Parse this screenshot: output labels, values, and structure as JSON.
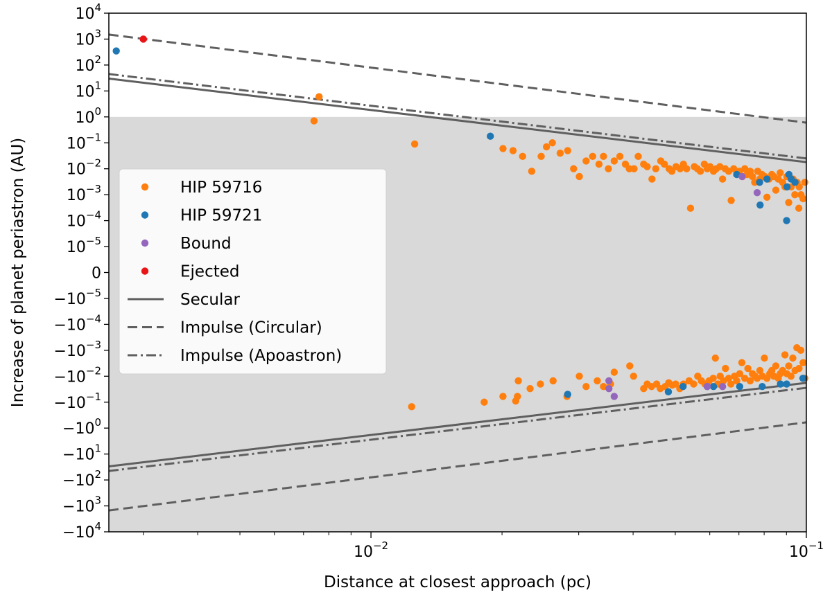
{
  "chart_data": {
    "type": "scatter",
    "title": "",
    "xlabel": "Distance at closest approach (pc)",
    "ylabel": "Increase of planet periastron (AU)",
    "x_scale": "log",
    "y_scale": "symlog",
    "xlim": [
      0.0025,
      0.1
    ],
    "y_tick_values": [
      10000,
      1000,
      100,
      10,
      1,
      0.1,
      0.01,
      0.001,
      0.0001,
      1e-05,
      0,
      -1e-05,
      -0.0001,
      -0.001,
      -0.01,
      -0.1,
      -1,
      -10,
      -100,
      -1000,
      -10000
    ],
    "y_tick_labels": [
      {
        "base": "10",
        "exp": "4"
      },
      {
        "base": "10",
        "exp": "3"
      },
      {
        "base": "10",
        "exp": "2"
      },
      {
        "base": "10",
        "exp": "1"
      },
      {
        "base": "10",
        "exp": "0"
      },
      {
        "base": "10",
        "exp": "−1"
      },
      {
        "base": "10",
        "exp": "−2"
      },
      {
        "base": "10",
        "exp": "−3"
      },
      {
        "base": "10",
        "exp": "−4"
      },
      {
        "base": "10",
        "exp": "−5"
      },
      {
        "base": "0",
        "exp": ""
      },
      {
        "base": "−10",
        "exp": "−5"
      },
      {
        "base": "−10",
        "exp": "−4"
      },
      {
        "base": "−10",
        "exp": "−3"
      },
      {
        "base": "−10",
        "exp": "−2"
      },
      {
        "base": "−10",
        "exp": "−1"
      },
      {
        "base": "−10",
        "exp": "0"
      },
      {
        "base": "−10",
        "exp": "1"
      },
      {
        "base": "−10",
        "exp": "2"
      },
      {
        "base": "−10",
        "exp": "3"
      },
      {
        "base": "−10",
        "exp": "4"
      }
    ],
    "x_major_ticks": [
      {
        "value": 0.01,
        "base": "10",
        "exp": "−2"
      },
      {
        "value": 0.1,
        "base": "10",
        "exp": "−1"
      }
    ],
    "x_minor_ticks": [
      0.003,
      0.004,
      0.005,
      0.006,
      0.007,
      0.008,
      0.009,
      0.02,
      0.03,
      0.04,
      0.05,
      0.06,
      0.07,
      0.08,
      0.09
    ],
    "shaded_region": {
      "y_from": -10000,
      "y_to": 1,
      "color": "#d9d9d9"
    },
    "colors": {
      "HIP 59716": "#ff7f0e",
      "HIP 59721": "#1f77b4",
      "Bound": "#9467bd",
      "Ejected": "#e81416",
      "line": "#5f5f5f"
    },
    "lines": [
      {
        "name": "Secular",
        "style": "solid",
        "branch": "positive",
        "points": [
          [
            0.0025,
            30
          ],
          [
            0.1,
            0.018
          ]
        ]
      },
      {
        "name": "Secular",
        "style": "solid",
        "branch": "negative",
        "points": [
          [
            0.0025,
            -30
          ],
          [
            0.1,
            -0.018
          ]
        ]
      },
      {
        "name": "Impulse (Circular)",
        "style": "dashed",
        "branch": "positive",
        "points": [
          [
            0.0025,
            1500
          ],
          [
            0.1,
            0.6
          ]
        ]
      },
      {
        "name": "Impulse (Circular)",
        "style": "dashed",
        "branch": "negative",
        "points": [
          [
            0.0025,
            -1500
          ],
          [
            0.1,
            -0.6
          ]
        ]
      },
      {
        "name": "Impulse (Apoastron)",
        "style": "dashdot",
        "branch": "positive",
        "points": [
          [
            0.0025,
            45
          ],
          [
            0.1,
            0.025
          ]
        ]
      },
      {
        "name": "Impulse (Apoastron)",
        "style": "dashdot",
        "branch": "negative",
        "points": [
          [
            0.0025,
            -45
          ],
          [
            0.1,
            -0.028
          ]
        ]
      }
    ],
    "series": [
      {
        "name": "HIP 59716",
        "points": [
          [
            0.0076,
            6
          ],
          [
            0.0074,
            0.7
          ],
          [
            0.0126,
            0.09
          ],
          [
            0.0124,
            -0.15
          ],
          [
            0.0182,
            -0.1
          ],
          [
            0.0201,
            -0.06
          ],
          [
            0.0215,
            -0.09
          ],
          [
            0.0217,
            -0.06
          ],
          [
            0.0218,
            -0.015
          ],
          [
            0.0232,
            -0.03
          ],
          [
            0.0245,
            -0.02
          ],
          [
            0.0262,
            -0.015
          ],
          [
            0.0282,
            -0.06
          ],
          [
            0.0301,
            -0.01
          ],
          [
            0.0312,
            -0.025
          ],
          [
            0.0331,
            -0.015
          ],
          [
            0.0342,
            -0.025
          ],
          [
            0.0355,
            -0.02
          ],
          [
            0.0362,
            -0.007
          ],
          [
            0.0393,
            -0.004
          ],
          [
            0.0401,
            -0.01
          ],
          [
            0.0423,
            -0.03
          ],
          [
            0.0431,
            -0.02
          ],
          [
            0.0441,
            -0.025
          ],
          [
            0.0453,
            -0.02
          ],
          [
            0.0462,
            -0.03
          ],
          [
            0.0474,
            -0.025
          ],
          [
            0.0483,
            -0.018
          ],
          [
            0.0492,
            -0.022
          ],
          [
            0.0501,
            -0.02
          ],
          [
            0.0512,
            -0.03
          ],
          [
            0.0522,
            -0.02
          ],
          [
            0.0538,
            -0.015
          ],
          [
            0.0551,
            -0.02
          ],
          [
            0.0563,
            -0.01
          ],
          [
            0.0574,
            -0.015
          ],
          [
            0.0585,
            -0.02
          ],
          [
            0.0598,
            -0.015
          ],
          [
            0.0611,
            -0.012
          ],
          [
            0.0618,
            -0.002
          ],
          [
            0.0626,
            -0.02
          ],
          [
            0.0634,
            -0.01
          ],
          [
            0.0645,
            -0.015
          ],
          [
            0.0652,
            -0.005
          ],
          [
            0.0663,
            -0.012
          ],
          [
            0.0671,
            -0.02
          ],
          [
            0.0684,
            -0.01
          ],
          [
            0.0692,
            -0.015
          ],
          [
            0.0703,
            -0.008
          ],
          [
            0.0711,
            -0.003
          ],
          [
            0.0722,
            -0.012
          ],
          [
            0.0734,
            -0.005
          ],
          [
            0.0743,
            -0.015
          ],
          [
            0.0752,
            -0.008
          ],
          [
            0.0763,
            -0.01
          ],
          [
            0.0771,
            -0.012
          ],
          [
            0.0782,
            -0.006
          ],
          [
            0.0793,
            -0.01
          ],
          [
            0.0801,
            -0.002
          ],
          [
            0.0812,
            -0.012
          ],
          [
            0.0824,
            -0.008
          ],
          [
            0.0833,
            -0.006
          ],
          [
            0.0842,
            -0.01
          ],
          [
            0.0851,
            -0.004
          ],
          [
            0.0862,
            -0.012
          ],
          [
            0.0871,
            -0.008
          ],
          [
            0.0882,
            -0.006
          ],
          [
            0.0893,
            -0.0015
          ],
          [
            0.0902,
            -0.008
          ],
          [
            0.0911,
            -0.004
          ],
          [
            0.0922,
            -0.01
          ],
          [
            0.0931,
            -0.002
          ],
          [
            0.0942,
            -0.006
          ],
          [
            0.0951,
            -0.0008
          ],
          [
            0.0962,
            -0.005
          ],
          [
            0.0971,
            -0.001
          ],
          [
            0.0983,
            -0.003
          ],
          [
            0.0992,
            -0.012
          ],
          [
            0.0201,
            0.06
          ],
          [
            0.0212,
            0.05
          ],
          [
            0.0223,
            0.03
          ],
          [
            0.0234,
            0.008
          ],
          [
            0.0246,
            0.03
          ],
          [
            0.0253,
            0.07
          ],
          [
            0.0261,
            0.1
          ],
          [
            0.0272,
            0.04
          ],
          [
            0.0283,
            0.05
          ],
          [
            0.0292,
            0.01
          ],
          [
            0.0301,
            0.005
          ],
          [
            0.0312,
            0.02
          ],
          [
            0.0323,
            0.03
          ],
          [
            0.0334,
            0.015
          ],
          [
            0.0342,
            0.03
          ],
          [
            0.0351,
            0.01
          ],
          [
            0.0362,
            0.02
          ],
          [
            0.0373,
            0.03
          ],
          [
            0.0384,
            0.015
          ],
          [
            0.0392,
            0.01
          ],
          [
            0.0402,
            0.01
          ],
          [
            0.0411,
            0.03
          ],
          [
            0.0423,
            0.015
          ],
          [
            0.0431,
            0.012
          ],
          [
            0.0442,
            0.004
          ],
          [
            0.0451,
            0.01
          ],
          [
            0.0463,
            0.02
          ],
          [
            0.0472,
            0.015
          ],
          [
            0.0484,
            0.01
          ],
          [
            0.0491,
            0.008
          ],
          [
            0.0502,
            0.012
          ],
          [
            0.0513,
            0.01
          ],
          [
            0.0522,
            0.015
          ],
          [
            0.0531,
            0.01
          ],
          [
            0.0542,
            0.0003
          ],
          [
            0.0553,
            0.012
          ],
          [
            0.0562,
            0.01
          ],
          [
            0.0571,
            0.008
          ],
          [
            0.0583,
            0.015
          ],
          [
            0.0592,
            0.01
          ],
          [
            0.0601,
            0.012
          ],
          [
            0.0612,
            0.008
          ],
          [
            0.0621,
            0.01
          ],
          [
            0.0633,
            0.012
          ],
          [
            0.0642,
            0.004
          ],
          [
            0.0651,
            0.01
          ],
          [
            0.0663,
            0.008
          ],
          [
            0.0672,
            0.0006
          ],
          [
            0.0681,
            0.01
          ],
          [
            0.0693,
            0.007
          ],
          [
            0.0702,
            0.008
          ],
          [
            0.0713,
            0.005
          ],
          [
            0.0722,
            0.01
          ],
          [
            0.0731,
            0.006
          ],
          [
            0.0743,
            0.008
          ],
          [
            0.0752,
            0.005
          ],
          [
            0.0761,
            0.003
          ],
          [
            0.0773,
            0.008
          ],
          [
            0.0782,
            0.004
          ],
          [
            0.0791,
            0.006
          ],
          [
            0.0803,
            0.005
          ],
          [
            0.0812,
            0.0008
          ],
          [
            0.0821,
            0.004
          ],
          [
            0.0833,
            0.006
          ],
          [
            0.0842,
            0.005
          ],
          [
            0.0851,
            0.0015
          ],
          [
            0.0862,
            0.004
          ],
          [
            0.0871,
            0.007
          ],
          [
            0.0882,
            0.003
          ],
          [
            0.0893,
            0.002
          ],
          [
            0.0902,
            0.005
          ],
          [
            0.0911,
            0.0005
          ],
          [
            0.0923,
            0.002
          ],
          [
            0.0932,
            0.004
          ],
          [
            0.0941,
            0.001
          ],
          [
            0.0952,
            0.003
          ],
          [
            0.0963,
            0.002
          ],
          [
            0.0972,
            0.001
          ],
          [
            0.0983,
            0.0007
          ],
          [
            0.0992,
            0.003
          ],
          [
            0.0961,
            0.0003
          ]
        ]
      },
      {
        "name": "HIP 59721",
        "points": [
          [
            0.0026,
            350
          ],
          [
            0.0188,
            0.18
          ],
          [
            0.0283,
            -0.05
          ],
          [
            0.0482,
            -0.04
          ],
          [
            0.0521,
            -0.025
          ],
          [
            0.0592,
            -0.025
          ],
          [
            0.0612,
            -0.025
          ],
          [
            0.0703,
            -0.025
          ],
          [
            0.0792,
            -0.025
          ],
          [
            0.0872,
            -0.02
          ],
          [
            0.0901,
            -0.02
          ],
          [
            0.0982,
            -0.012
          ],
          [
            0.0692,
            0.006
          ],
          [
            0.0781,
            0.003
          ],
          [
            0.0812,
            0.004
          ],
          [
            0.0783,
            0.0004
          ],
          [
            0.0901,
            0.0001
          ],
          [
            0.0912,
            0.006
          ],
          [
            0.0923,
            0.004
          ],
          [
            0.0942,
            0.003
          ],
          [
            0.0903,
            0.002
          ]
        ]
      },
      {
        "name": "Bound",
        "points": [
          [
            0.0352,
            -0.03
          ],
          [
            0.0362,
            -0.06
          ],
          [
            0.0592,
            -0.025
          ],
          [
            0.0642,
            -0.025
          ],
          [
            0.0712,
            0.005
          ],
          [
            0.0771,
            0.0012
          ],
          [
            0.0352,
            -0.015
          ]
        ]
      },
      {
        "name": "Ejected",
        "points": [
          [
            0.003,
            1000
          ]
        ]
      }
    ],
    "legend": {
      "location": "center-left",
      "entries": [
        {
          "label": "HIP 59716",
          "marker": "dot",
          "color": "#ff7f0e"
        },
        {
          "label": "HIP 59721",
          "marker": "dot",
          "color": "#1f77b4"
        },
        {
          "label": "Bound",
          "marker": "dot",
          "color": "#9467bd"
        },
        {
          "label": "Ejected",
          "marker": "dot",
          "color": "#e81416"
        },
        {
          "label": "Secular",
          "marker": "solid",
          "color": "#5f5f5f"
        },
        {
          "label": "Impulse (Circular)",
          "marker": "dashed",
          "color": "#5f5f5f"
        },
        {
          "label": "Impulse (Apoastron)",
          "marker": "dashdot",
          "color": "#5f5f5f"
        }
      ]
    }
  }
}
